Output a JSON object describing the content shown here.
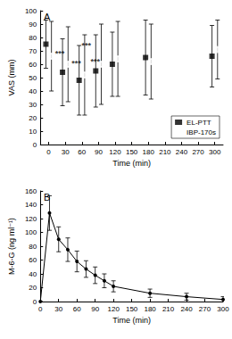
{
  "chart_data": [
    {
      "type": "scatter",
      "title": "A",
      "x_label": "Time (min)",
      "y_label": "VAS (mm)",
      "xlim": [
        -15,
        315
      ],
      "xticks": [
        0,
        30,
        60,
        90,
        120,
        150,
        180,
        210,
        240,
        270,
        300
      ],
      "ylim": [
        0,
        100
      ],
      "yticks": [
        0,
        10,
        20,
        30,
        40,
        50,
        60,
        70,
        80,
        90,
        100
      ],
      "grid": false,
      "legend": "lower right",
      "series": [
        {
          "name": "EL-PTT",
          "color": "#000000",
          "marker": "square",
          "x": [
            -5,
            25,
            55,
            85,
            115,
            175,
            295
          ],
          "values": [
            75,
            54,
            48,
            55,
            60,
            65,
            66
          ],
          "errors": [
            18,
            25,
            26,
            27,
            24,
            28,
            23
          ]
        },
        {
          "name": "IBP-170s",
          "color": "#000000",
          "marker": "circle",
          "x": [
            5,
            35,
            65,
            95,
            125,
            185,
            305
          ],
          "values": [
            66,
            60,
            52,
            60,
            64,
            62,
            71
          ],
          "errors": [
            26,
            28,
            30,
            30,
            28,
            28,
            22
          ]
        }
      ],
      "annotations": [
        {
          "text": "***",
          "x": 20,
          "y": 68
        },
        {
          "text": "***",
          "x": 50,
          "y": 61
        },
        {
          "text": "***",
          "x": 68,
          "y": 74
        },
        {
          "text": "***",
          "x": 84,
          "y": 62
        }
      ]
    },
    {
      "type": "line",
      "title": "B",
      "x_label": "Time (min)",
      "y_label": "M-6-G (ng ml⁻¹)",
      "xlim": [
        0,
        300
      ],
      "xticks": [
        0,
        30,
        60,
        90,
        120,
        150,
        180,
        210,
        240,
        270,
        300
      ],
      "ylim": [
        0,
        160
      ],
      "yticks": [
        0,
        20,
        40,
        60,
        80,
        100,
        120,
        140,
        160
      ],
      "grid": false,
      "series": [
        {
          "name": "M-6-G",
          "color": "#000000",
          "marker": "dot",
          "x": [
            0,
            15,
            30,
            45,
            60,
            75,
            90,
            105,
            120,
            180,
            240,
            300
          ],
          "values": [
            0,
            128,
            90,
            75,
            58,
            47,
            38,
            30,
            22,
            12,
            7,
            3
          ],
          "errors": [
            0,
            25,
            18,
            17,
            15,
            12,
            12,
            10,
            8,
            6,
            5,
            4
          ]
        }
      ]
    }
  ]
}
